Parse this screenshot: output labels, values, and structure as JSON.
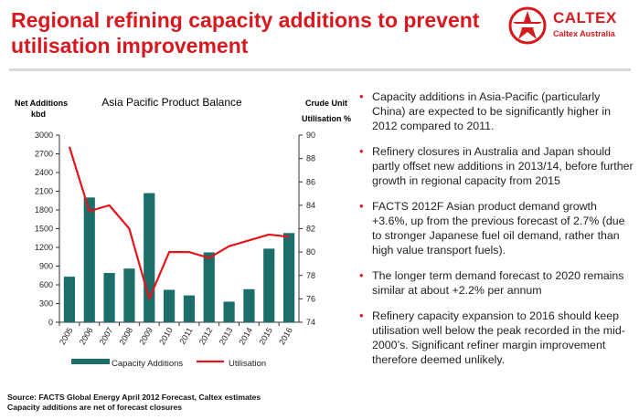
{
  "header": {
    "title": "Regional refining capacity additions to prevent utilisation improvement"
  },
  "logo": {
    "name": "CALTEX",
    "sub": "Caltex Australia",
    "icon": "caltex-star-icon",
    "color": "#d7191f"
  },
  "chart_data": {
    "type": "bar",
    "title": "Asia Pacific Product Balance",
    "y_left_label_line1": "Net Additions",
    "y_left_label_line2": "kbd",
    "y_right_label_line1": "Crude Unit",
    "y_right_label_line2": "Utilisation %",
    "categories": [
      "2005",
      "2006",
      "2007",
      "2008",
      "2009",
      "2010",
      "2011",
      "2012",
      "2013",
      "2014",
      "2015",
      "2016"
    ],
    "ylim_left": [
      0,
      3000
    ],
    "yticks_left": [
      0,
      300,
      600,
      900,
      1200,
      1500,
      1800,
      2100,
      2400,
      2700,
      3000
    ],
    "ylim_right": [
      74,
      90
    ],
    "yticks_right": [
      74,
      76,
      78,
      80,
      82,
      84,
      86,
      88,
      90
    ],
    "series": [
      {
        "name": "Capacity Additions",
        "kind": "bar",
        "axis": "left",
        "color": "#1b6e6a",
        "values": [
          730,
          2000,
          790,
          860,
          2070,
          520,
          430,
          1120,
          330,
          530,
          1180,
          1430
        ]
      },
      {
        "name": "Utilisation",
        "kind": "line",
        "axis": "right",
        "color": "#e3141b",
        "values": [
          89.0,
          83.5,
          84.0,
          82.0,
          76.0,
          80.0,
          80.0,
          79.5,
          80.5,
          81.0,
          81.5,
          81.3
        ]
      }
    ],
    "legend_position": "bottom",
    "grid": false
  },
  "bullets": [
    "Capacity additions in Asia-Pacific (particularly China) are expected to be significantly higher in 2012 compared to 2011.",
    "Refinery closures in Australia and Japan should partly offset new additions in 2013/14, before further growth in regional capacity from 2015",
    "FACTS 2012F Asian product demand growth +3.6%, up from the previous forecast of 2.7% (due to stronger Japanese fuel oil demand, rather than high value transport fuels).",
    "The longer term demand forecast to 2020 remains similar at about +2.2% per annum",
    "Refinery capacity expansion to 2016 should keep utilisation well below the peak recorded in the mid-2000’s. Significant refiner margin improvement therefore deemed unlikely."
  ],
  "footer": {
    "source_line1": "Source: FACTS Global Energy April 2012 Forecast, Caltex estimates",
    "source_line2": "Capacity additions are net of forecast closures"
  }
}
